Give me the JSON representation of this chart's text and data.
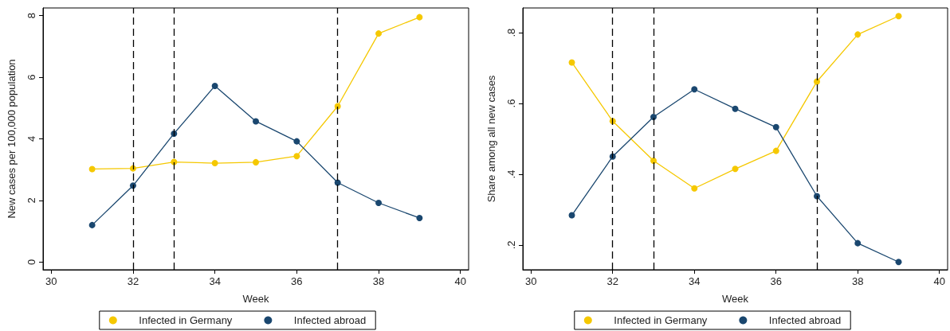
{
  "chart_data": [
    {
      "type": "line",
      "xlabel": "Week",
      "ylabel": "New cases per 100,000 population",
      "x": [
        31,
        32,
        33,
        34,
        35,
        36,
        37,
        38,
        39
      ],
      "series": [
        {
          "name": "Infected in Germany",
          "color": "#f5c800",
          "values": [
            3.02,
            3.04,
            3.25,
            3.21,
            3.24,
            3.44,
            5.06,
            7.42,
            7.95
          ]
        },
        {
          "name": "Infected abroad",
          "color": "#1a476f",
          "values": [
            1.2,
            2.48,
            4.17,
            5.72,
            4.57,
            3.92,
            2.58,
            1.92,
            1.43
          ]
        }
      ],
      "xlim": [
        29.8,
        40.2
      ],
      "xticks": [
        30,
        32,
        34,
        36,
        38,
        40
      ],
      "ylim": [
        -0.25,
        8.25
      ],
      "yticks": [
        0,
        2,
        4,
        6,
        8
      ],
      "ref_lines": [
        {
          "axis": "x",
          "value": 32,
          "color": "#000000",
          "line_style": "dashed"
        },
        {
          "axis": "x",
          "value": 33,
          "color": "#000000",
          "line_style": "dashed"
        },
        {
          "axis": "x",
          "value": 37,
          "color": "#000000",
          "line_style": "dashed"
        }
      ],
      "grid": false,
      "legend": "bottom",
      "marker": "circle",
      "line_style": "solid"
    },
    {
      "type": "line",
      "xlabel": "Week",
      "ylabel": "Share among all new cases",
      "x": [
        31,
        32,
        33,
        34,
        35,
        36,
        37,
        38,
        39
      ],
      "series": [
        {
          "name": "Infected in Germany",
          "color": "#f5c800",
          "values": [
            0.716,
            0.55,
            0.438,
            0.36,
            0.415,
            0.466,
            0.662,
            0.795,
            0.847
          ]
        },
        {
          "name": "Infected abroad",
          "color": "#1a476f",
          "values": [
            0.284,
            0.45,
            0.562,
            0.64,
            0.585,
            0.533,
            0.338,
            0.205,
            0.152
          ]
        }
      ],
      "xlim": [
        29.8,
        40.2
      ],
      "xticks": [
        30,
        32,
        34,
        36,
        38,
        40
      ],
      "ylim": [
        0.13,
        0.87
      ],
      "yticks": [
        {
          "value": 0.2,
          "label": ".2"
        },
        {
          "value": 0.4,
          "label": ".4"
        },
        {
          "value": 0.6,
          "label": ".6"
        },
        {
          "value": 0.8,
          "label": ".8"
        }
      ],
      "ref_lines": [
        {
          "axis": "x",
          "value": 32,
          "color": "#000000",
          "line_style": "dashed"
        },
        {
          "axis": "x",
          "value": 33,
          "color": "#000000",
          "line_style": "dashed"
        },
        {
          "axis": "x",
          "value": 37,
          "color": "#000000",
          "line_style": "dashed"
        }
      ],
      "grid": false,
      "legend": "bottom",
      "marker": "circle",
      "line_style": "solid"
    }
  ]
}
